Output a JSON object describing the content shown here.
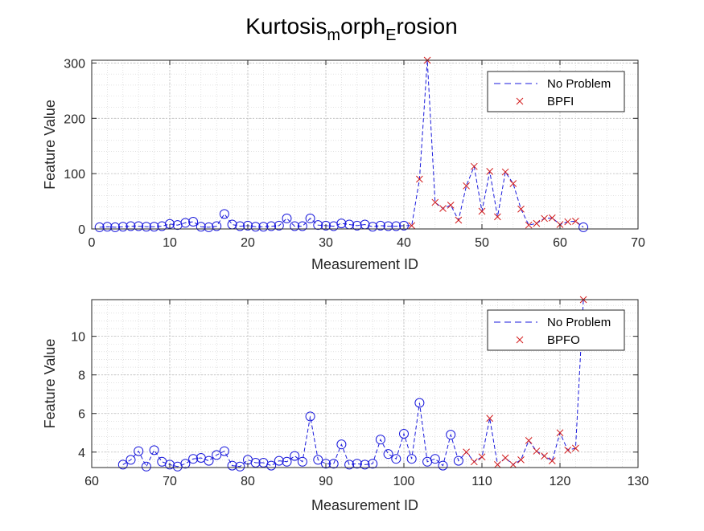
{
  "figure": {
    "title_main": "Kurtosis",
    "title_sub1": "m",
    "title_mid": "orph",
    "title_sub2": "E",
    "title_end": "rosion"
  },
  "colors": {
    "blue": "#1a1adc",
    "red": "#d21b1b",
    "grid": "#d0d0d0",
    "axis": "#262626"
  },
  "chart_data": [
    {
      "type": "line",
      "xlabel": "Measurement ID",
      "ylabel": "Feature Value",
      "xlim": [
        0,
        70
      ],
      "ylim": [
        0,
        305
      ],
      "xticks": [
        0,
        10,
        20,
        30,
        40,
        50,
        60,
        70
      ],
      "yticks": [
        0,
        100,
        200,
        300
      ],
      "grid": true,
      "legend_position": "top-right",
      "legend": [
        "No Problem",
        "BPFI"
      ],
      "series": [
        {
          "name": "No Problem",
          "marker": "circle",
          "x": [
            1,
            2,
            3,
            4,
            5,
            6,
            7,
            8,
            9,
            10,
            11,
            12,
            13,
            14,
            15,
            16,
            17,
            18,
            19,
            20,
            21,
            22,
            23,
            24,
            25,
            26,
            27,
            28,
            29,
            30,
            31,
            32,
            33,
            34,
            35,
            36,
            37,
            38,
            39,
            40
          ],
          "y": [
            3,
            4,
            3,
            4,
            5,
            5,
            4,
            4,
            5,
            9,
            7,
            11,
            13,
            4,
            3,
            5,
            27,
            8,
            5,
            6,
            4,
            4,
            5,
            6,
            19,
            5,
            5,
            19,
            7,
            6,
            5,
            10,
            8,
            6,
            8,
            4,
            6,
            5,
            5,
            6
          ]
        },
        {
          "name": "BPFI",
          "marker": "x",
          "x": [
            41,
            42,
            43,
            44,
            45,
            46,
            47,
            48,
            49,
            50,
            51,
            52,
            53,
            54,
            55,
            56,
            57,
            58,
            59,
            60,
            61,
            62
          ],
          "y": [
            6,
            90,
            305,
            48,
            37,
            43,
            16,
            78,
            113,
            32,
            104,
            22,
            103,
            82,
            36,
            7,
            10,
            19,
            20,
            8,
            13,
            14
          ]
        },
        {
          "name": "",
          "marker": "circle",
          "x": [
            63
          ],
          "y": [
            3
          ]
        }
      ]
    },
    {
      "type": "line",
      "xlabel": "Measurement ID",
      "ylabel": "Feature Value",
      "xlim": [
        60,
        130
      ],
      "ylim": [
        3.2,
        11.9
      ],
      "xticks": [
        60,
        70,
        80,
        90,
        100,
        110,
        120,
        130
      ],
      "yticks": [
        4,
        6,
        8,
        10
      ],
      "grid": true,
      "legend_position": "top-right",
      "legend": [
        "No Problem",
        "BPFO"
      ],
      "series": [
        {
          "name": "No Problem",
          "marker": "circle",
          "x": [
            64,
            65,
            66,
            67,
            68,
            69,
            70,
            71,
            72,
            73,
            74,
            75,
            76,
            77,
            78,
            79,
            80,
            81,
            82,
            83,
            84,
            85,
            86,
            87,
            88,
            89,
            90,
            91,
            92,
            93,
            94,
            95,
            96,
            97,
            98,
            99,
            100,
            101,
            102,
            103,
            104,
            105,
            106,
            107
          ],
          "y": [
            3.35,
            3.6,
            4.05,
            3.25,
            4.1,
            3.5,
            3.35,
            3.25,
            3.4,
            3.65,
            3.7,
            3.55,
            3.85,
            4.05,
            3.3,
            3.25,
            3.6,
            3.45,
            3.45,
            3.3,
            3.55,
            3.5,
            3.8,
            3.5,
            5.85,
            3.6,
            3.4,
            3.4,
            4.4,
            3.35,
            3.4,
            3.35,
            3.4,
            4.65,
            3.9,
            3.65,
            4.95,
            3.65,
            6.55,
            3.5,
            3.65,
            3.3,
            4.9,
            3.55
          ]
        },
        {
          "name": "BPFO",
          "marker": "x",
          "x": [
            108,
            109,
            110,
            111,
            112,
            113,
            114,
            115,
            116,
            117,
            118,
            119,
            120,
            121,
            122,
            123
          ],
          "y": [
            4.0,
            3.5,
            3.75,
            5.75,
            3.35,
            3.7,
            3.35,
            3.6,
            4.6,
            4.05,
            3.8,
            3.55,
            5.0,
            4.1,
            4.2,
            11.9
          ]
        }
      ]
    }
  ]
}
